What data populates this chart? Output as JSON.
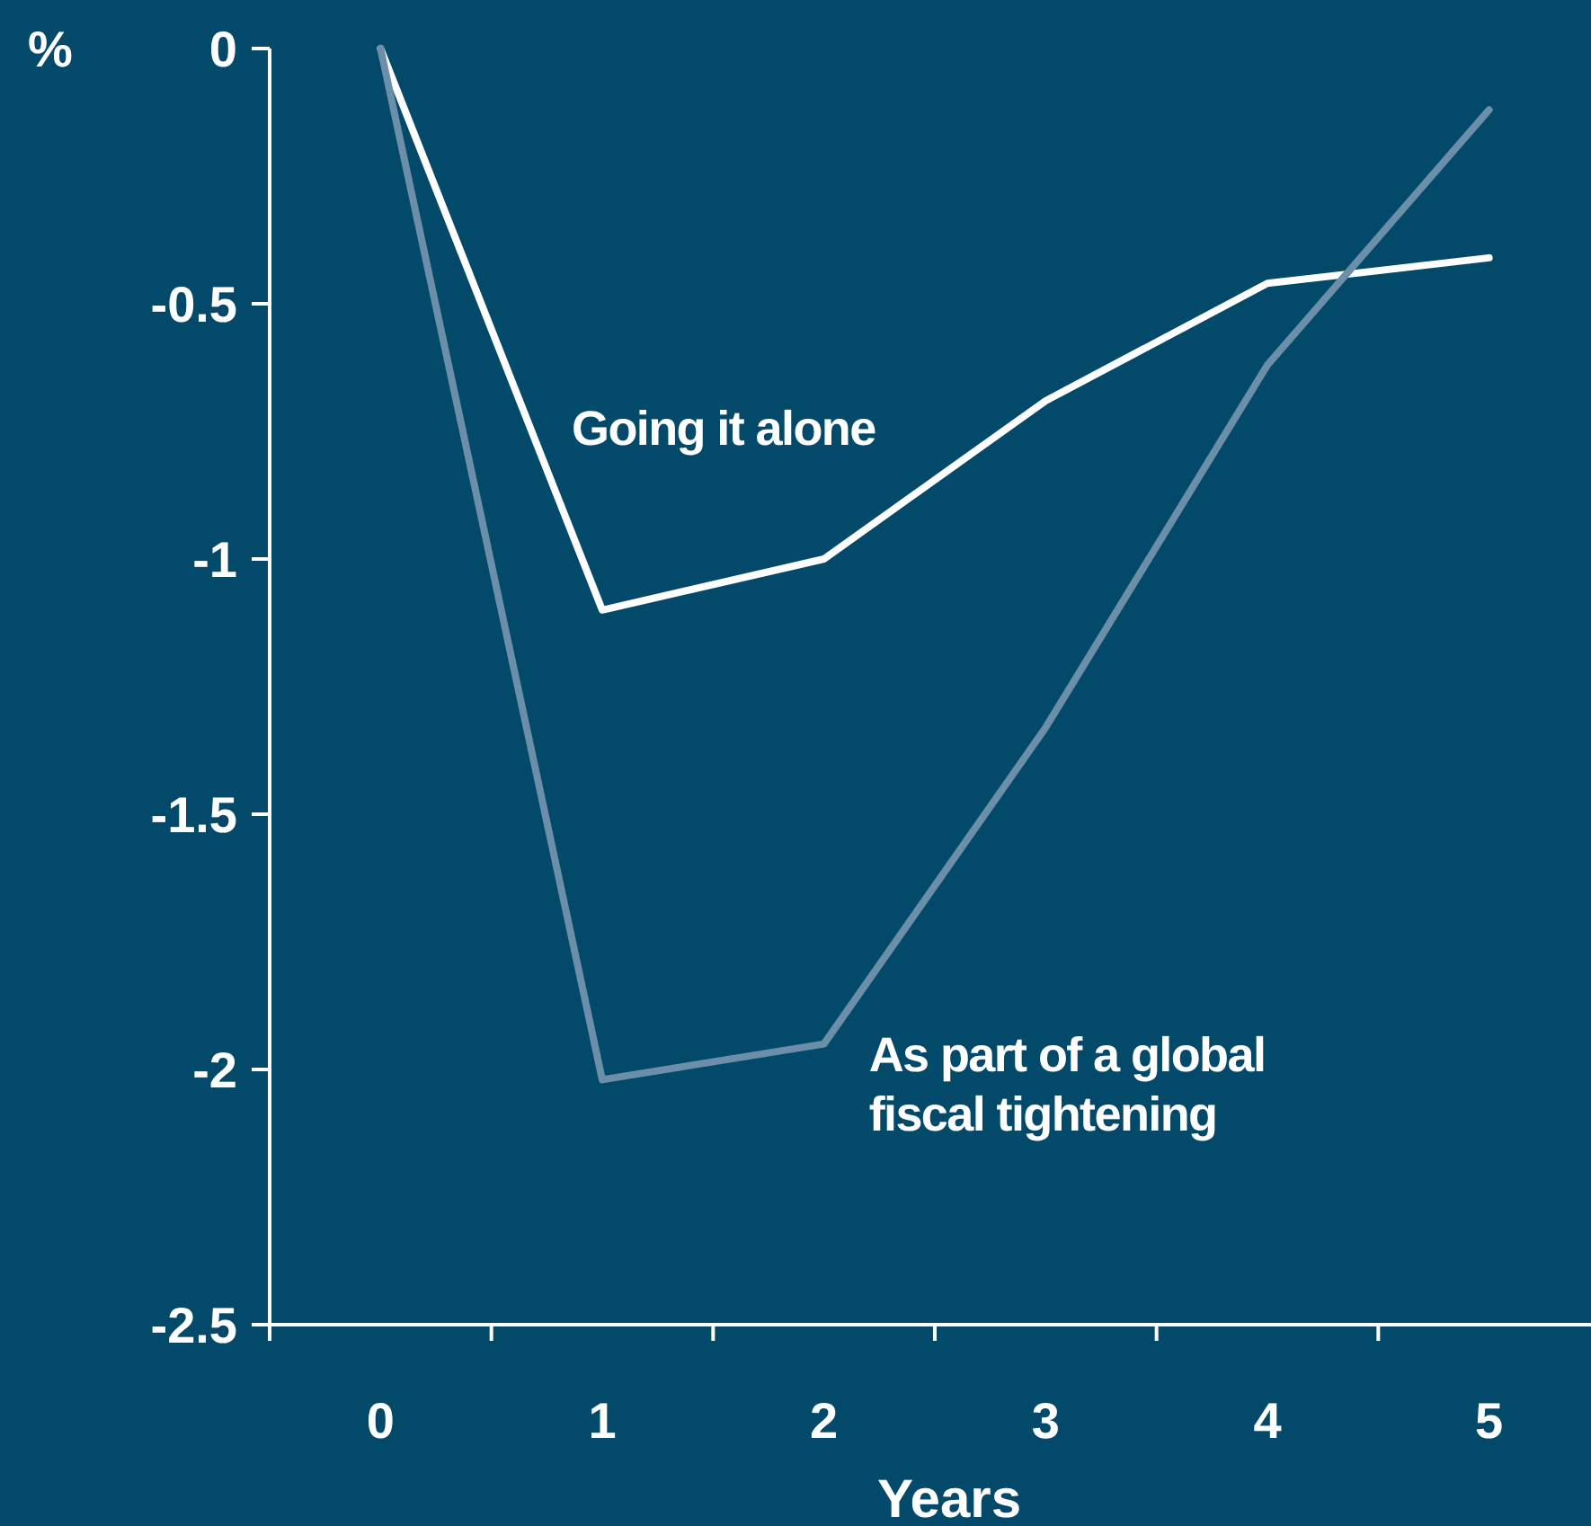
{
  "chart_data": {
    "type": "line",
    "xlabel": "Years",
    "ylabel": "%",
    "categories": [
      "0",
      "1",
      "2",
      "3",
      "4",
      "5"
    ],
    "ylim": [
      -2.5,
      0
    ],
    "yticks": [
      0,
      -0.5,
      -1,
      -1.5,
      -2,
      -2.5
    ],
    "grid": false,
    "legend": false,
    "marker": "none",
    "line_style": "solid",
    "series": [
      {
        "name": "Going it alone",
        "color": "#ffffff",
        "values": [
          0,
          -1.1,
          -1.0,
          -0.69,
          -0.46,
          -0.41
        ]
      },
      {
        "name": "As part of a global fiscal tightening",
        "color": "#6b8fa8",
        "values": [
          0,
          -2.02,
          -1.95,
          -1.33,
          -0.62,
          -0.12
        ]
      }
    ]
  }
}
